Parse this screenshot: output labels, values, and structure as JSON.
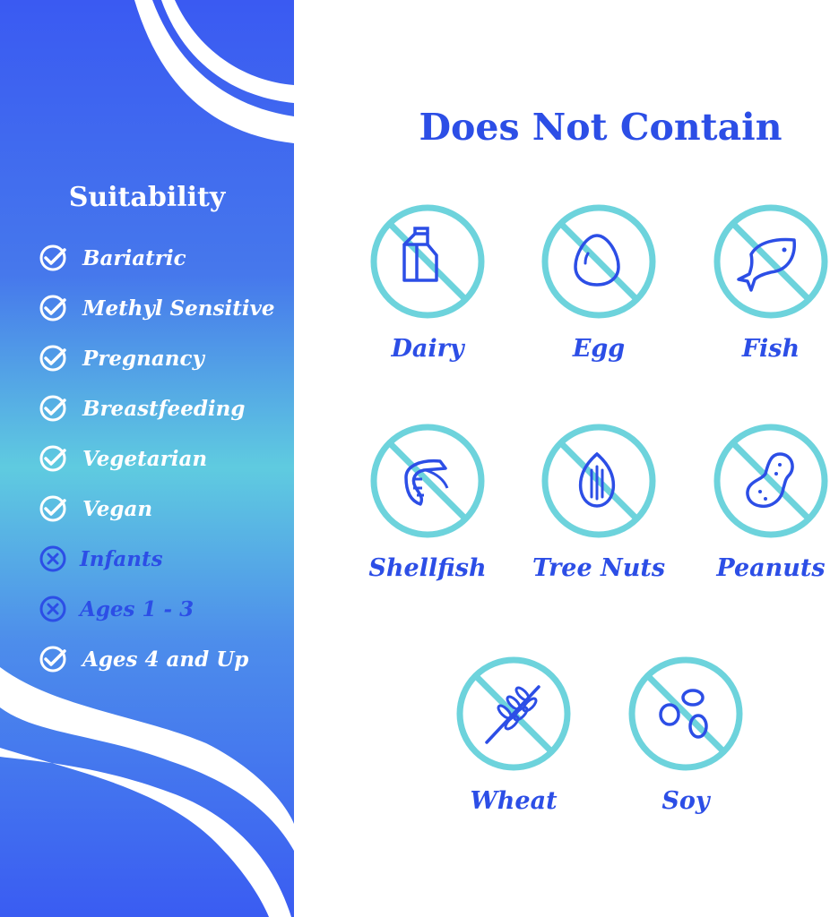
{
  "suitability": {
    "title": "Suitability",
    "items": [
      {
        "label": "Bariatric",
        "status": "suitable",
        "icon": "check-circle-icon"
      },
      {
        "label": "Methyl Sensitive",
        "status": "suitable",
        "icon": "check-circle-icon"
      },
      {
        "label": "Pregnancy",
        "status": "suitable",
        "icon": "check-circle-icon"
      },
      {
        "label": "Breastfeeding",
        "status": "suitable",
        "icon": "check-circle-icon"
      },
      {
        "label": "Vegetarian",
        "status": "suitable",
        "icon": "check-circle-icon"
      },
      {
        "label": "Vegan",
        "status": "suitable",
        "icon": "check-circle-icon"
      },
      {
        "label": "Infants",
        "status": "not-suitable",
        "icon": "x-circle-icon"
      },
      {
        "label": "Ages 1 - 3",
        "status": "not-suitable",
        "icon": "x-circle-icon"
      },
      {
        "label": "Ages 4 and Up",
        "status": "suitable",
        "icon": "check-circle-icon"
      }
    ]
  },
  "does_not_contain": {
    "title": "Does Not Contain",
    "items": [
      {
        "label": "Dairy",
        "icon": "milk-carton-icon"
      },
      {
        "label": "Egg",
        "icon": "egg-icon"
      },
      {
        "label": "Fish",
        "icon": "fish-icon"
      },
      {
        "label": "Shellfish",
        "icon": "shrimp-icon"
      },
      {
        "label": "Tree Nuts",
        "icon": "almond-icon"
      },
      {
        "label": "Peanuts",
        "icon": "peanut-icon"
      },
      {
        "label": "Wheat",
        "icon": "wheat-icon"
      },
      {
        "label": "Soy",
        "icon": "soybean-icon"
      }
    ]
  },
  "colors": {
    "brand_blue": "#2c4ee6",
    "teal": "#6dd3dc",
    "white": "#ffffff"
  }
}
